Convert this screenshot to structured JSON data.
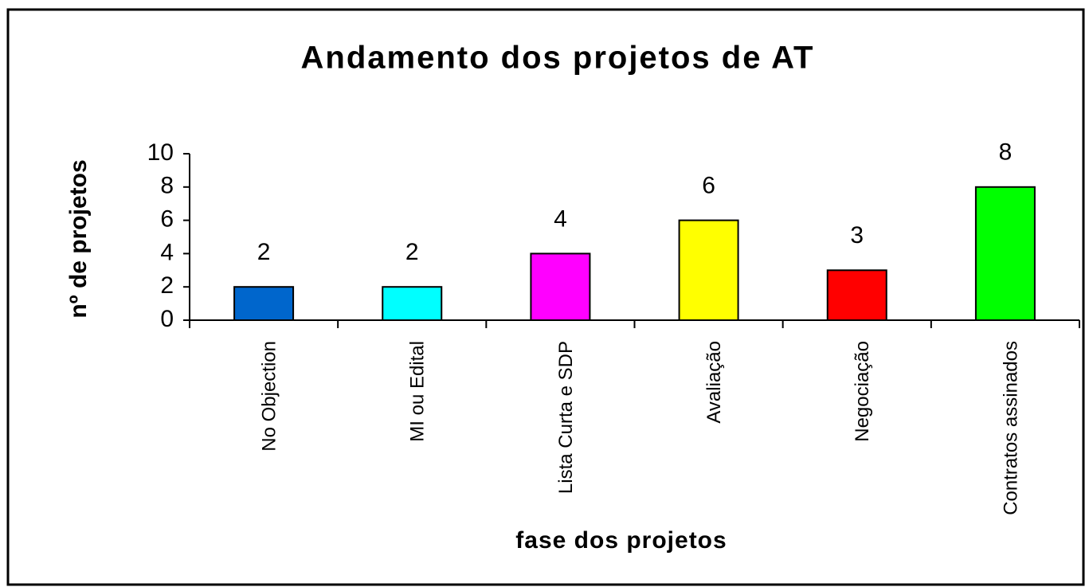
{
  "chart_data": {
    "type": "bar",
    "title": "Andamento dos projetos de AT",
    "y_label": "nº de projetos",
    "x_label": "fase dos projetos",
    "categories": [
      "No Objection",
      "MI ou Edital",
      "Lista Curta e SDP",
      "Avaliação",
      "Negociação",
      "Contratos assinados"
    ],
    "values": [
      2,
      2,
      4,
      6,
      3,
      8
    ],
    "colors": [
      "#0066cc",
      "#00ffff",
      "#ff00ff",
      "#ffff00",
      "#ff0000",
      "#00ff00"
    ],
    "ylim": [
      0,
      10
    ],
    "yticks": [
      0,
      2,
      4,
      6,
      8,
      10
    ],
    "grid": false
  }
}
